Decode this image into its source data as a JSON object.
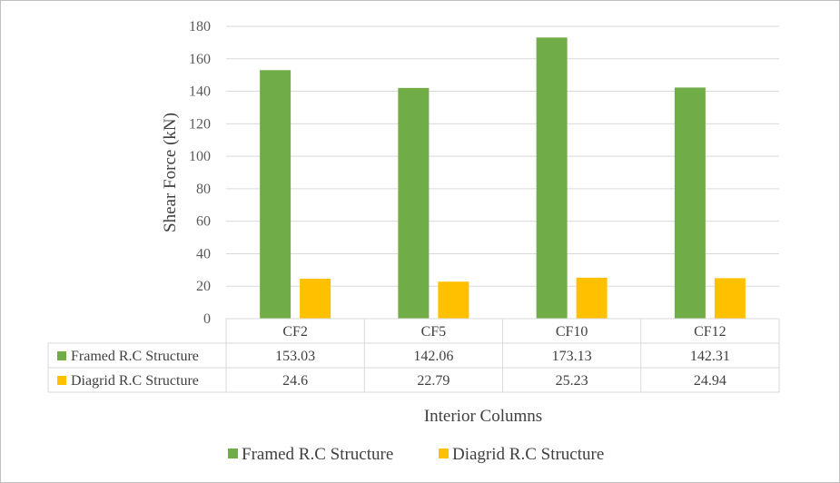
{
  "chart_data": {
    "type": "bar",
    "title": "",
    "xlabel": "Interior Columns",
    "ylabel": "Shear Force (kN)",
    "ylim": [
      0,
      180
    ],
    "yticks": [
      0,
      20,
      40,
      60,
      80,
      100,
      120,
      140,
      160,
      180
    ],
    "categories": [
      "CF2",
      "CF5",
      "CF10",
      "CF12"
    ],
    "series": [
      {
        "name": "Framed R.C Structure",
        "color": "#70ad47",
        "values": [
          153.03,
          142.06,
          173.13,
          142.31
        ],
        "labels": [
          "153.03",
          "142.06",
          "173.13",
          "142.31"
        ]
      },
      {
        "name": "Diagrid R.C Structure",
        "color": "#ffc000",
        "values": [
          24.6,
          22.79,
          25.23,
          24.94
        ],
        "labels": [
          "24.6",
          "22.79",
          "25.23",
          "24.94"
        ]
      }
    ],
    "grid": true,
    "data_table": true,
    "legend_position": "bottom"
  }
}
